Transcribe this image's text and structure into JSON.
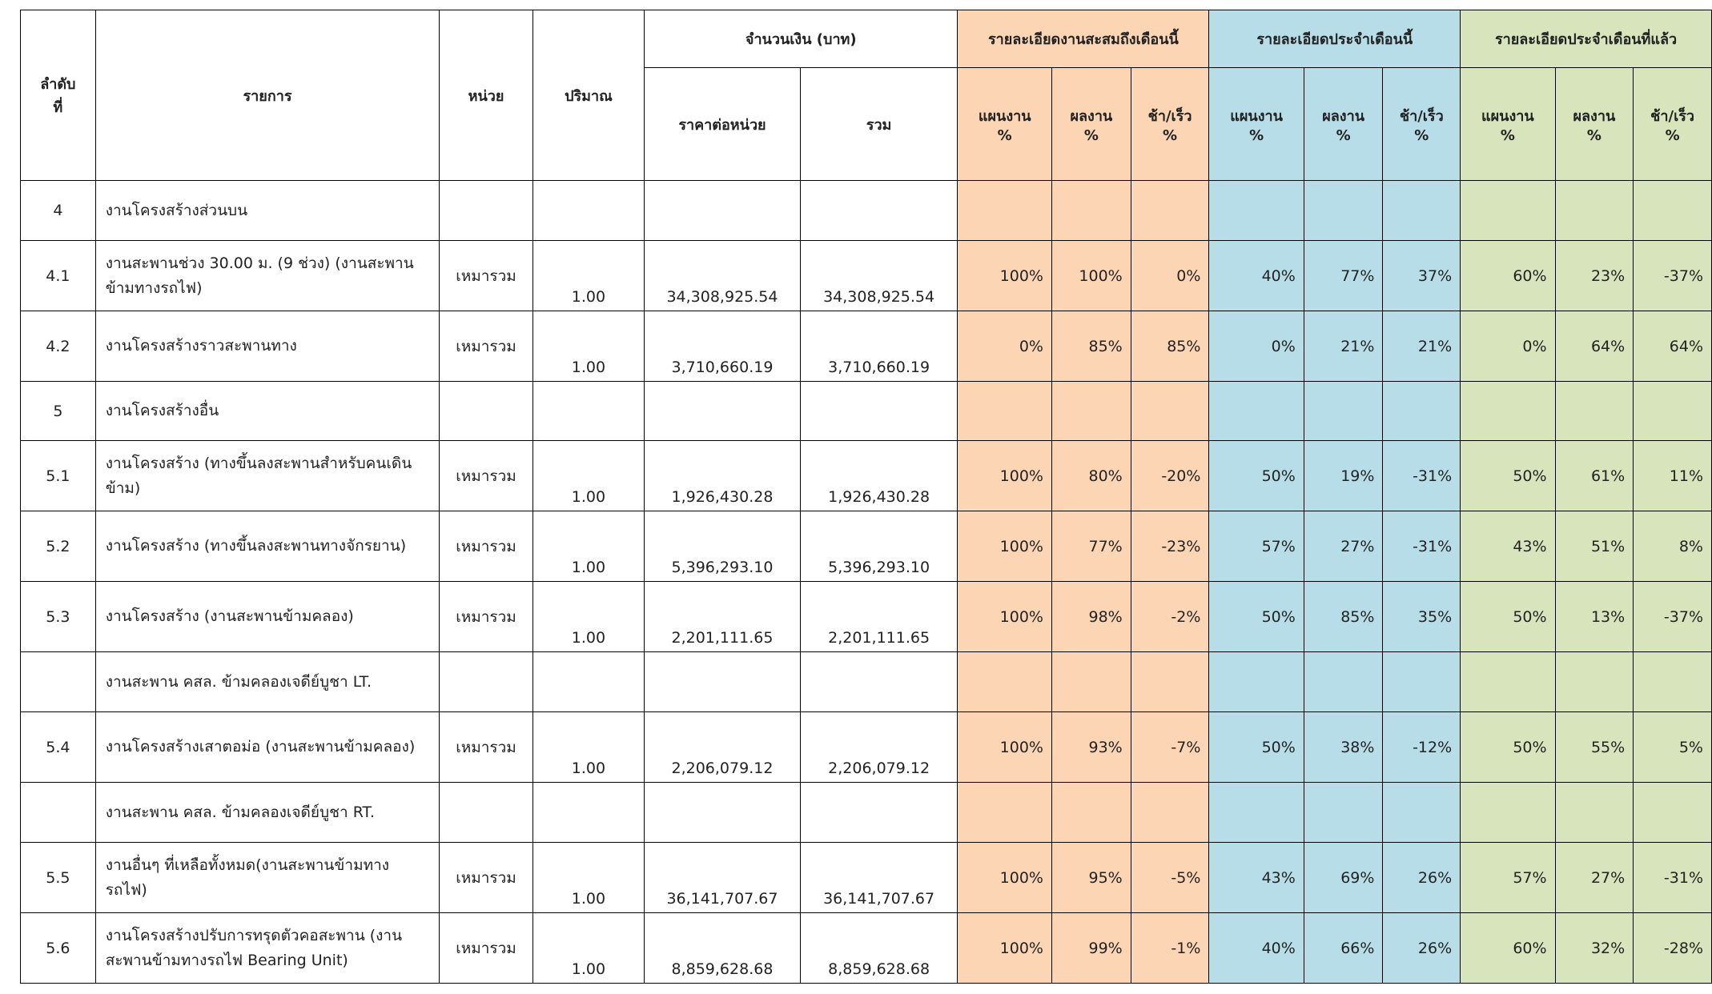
{
  "header": {
    "no": "ลำดับ\nที่",
    "item": "รายการ",
    "unit": "หน่วย",
    "qty": "ปริมาณ",
    "amount": "จำนวนเงิน (บาท)",
    "price": "ราคาต่อหน่วย",
    "total": "รวม",
    "groups": [
      "รายละเอียดงานสะสมถึงเดือนนี้",
      "รายละเอียดประจำเดือนนี้",
      "รายละเอียดประจำเดือนที่แล้ว"
    ],
    "sub": [
      "แผนงาน\n%",
      "ผลงาน\n%",
      "ช้า/เร็ว\n%"
    ]
  },
  "rows": [
    {
      "no": "4",
      "item": "งานโครงสร้างส่วนบน"
    },
    {
      "no": "4.1",
      "item": "งานสะพานช่วง 30.00 ม. (9 ช่วง) (งานสะพานข้ามทางรถไฟ)",
      "unit": "เหมารวม",
      "qty": "1.00",
      "price": "34,308,925.54",
      "total": "34,308,925.54",
      "pct": [
        "100%",
        "100%",
        "0%",
        "40%",
        "77%",
        "37%",
        "60%",
        "23%",
        "-37%"
      ]
    },
    {
      "no": "4.2",
      "item": "งานโครงสร้างราวสะพานทาง",
      "unit": "เหมารวม",
      "qty": "1.00",
      "price": "3,710,660.19",
      "total": "3,710,660.19",
      "pct": [
        "0%",
        "85%",
        "85%",
        "0%",
        "21%",
        "21%",
        "0%",
        "64%",
        "64%"
      ]
    },
    {
      "no": "5",
      "item": "งานโครงสร้างอื่น"
    },
    {
      "no": "5.1",
      "item": "งานโครงสร้าง (ทางขึ้นลงสะพานสำหรับคนเดินข้าม)",
      "unit": "เหมารวม",
      "qty": "1.00",
      "price": "1,926,430.28",
      "total": "1,926,430.28",
      "pct": [
        "100%",
        "80%",
        "-20%",
        "50%",
        "19%",
        "-31%",
        "50%",
        "61%",
        "11%"
      ]
    },
    {
      "no": "5.2",
      "item": "งานโครงสร้าง (ทางขึ้นลงสะพานทางจักรยาน)",
      "unit": "เหมารวม",
      "qty": "1.00",
      "price": "5,396,293.10",
      "total": "5,396,293.10",
      "pct": [
        "100%",
        "77%",
        "-23%",
        "57%",
        "27%",
        "-31%",
        "43%",
        "51%",
        "8%"
      ]
    },
    {
      "no": "5.3",
      "item": "งานโครงสร้าง (งานสะพานข้ามคลอง)",
      "unit": "เหมารวม",
      "qty": "1.00",
      "price": "2,201,111.65",
      "total": "2,201,111.65",
      "pct": [
        "100%",
        "98%",
        "-2%",
        "50%",
        "85%",
        "35%",
        "50%",
        "13%",
        "-37%"
      ]
    },
    {
      "item": "งานสะพาน คสล.  ข้ามคลองเจดีย์บูชา LT."
    },
    {
      "no": "5.4",
      "item": "งานโครงสร้างเสาตอม่อ (งานสะพานข้ามคลอง)",
      "unit": "เหมารวม",
      "qty": "1.00",
      "price": "2,206,079.12",
      "total": "2,206,079.12",
      "pct": [
        "100%",
        "93%",
        "-7%",
        "50%",
        "38%",
        "-12%",
        "50%",
        "55%",
        "5%"
      ]
    },
    {
      "item": "งานสะพาน คสล.  ข้ามคลองเจดีย์บูชา RT."
    },
    {
      "no": "5.5",
      "item": "งานอื่นๆ ที่เหลือทั้งหมด(งานสะพานข้ามทางรถไฟ)",
      "unit": "เหมารวม",
      "qty": "1.00",
      "price": "36,141,707.67",
      "total": "36,141,707.67",
      "pct": [
        "100%",
        "95%",
        "-5%",
        "43%",
        "69%",
        "26%",
        "57%",
        "27%",
        "-31%"
      ]
    },
    {
      "no": "5.6",
      "item": "งานโครงสร้างปรับการทรุดตัวคอสะพาน (งานสะพานข้ามทางรถไฟ Bearing Unit)",
      "unit": "เหมารวม",
      "qty": "1.00",
      "price": "8,859,628.68",
      "total": "8,859,628.68",
      "pct": [
        "100%",
        "99%",
        "-1%",
        "40%",
        "66%",
        "26%",
        "60%",
        "32%",
        "-28%"
      ]
    }
  ]
}
